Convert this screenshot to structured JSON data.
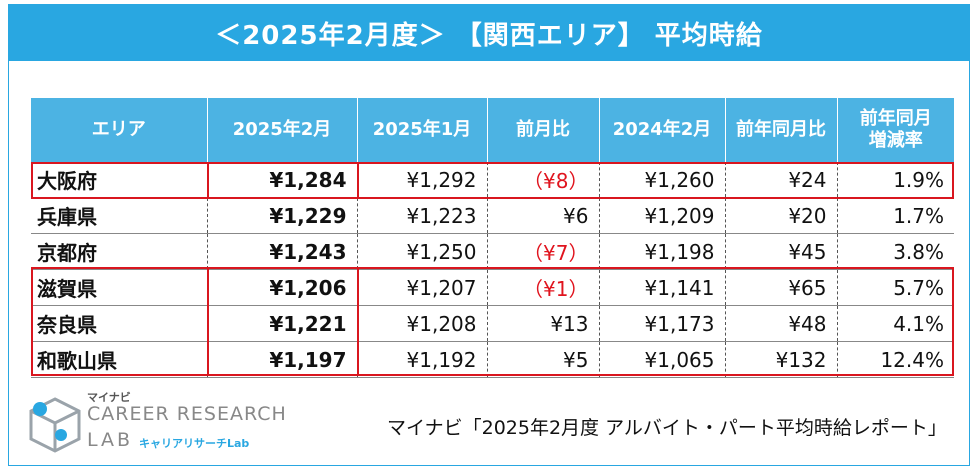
{
  "title": "＜2025年2月度＞ 【関西エリア】 平均時給",
  "table": {
    "headers": [
      "エリア",
      "2025年2月",
      "2025年1月",
      "前月比",
      "2024年2月",
      "前年同月比",
      "前年同月\n増減率"
    ],
    "rows": [
      {
        "area": "大阪府",
        "feb2025": "¥1,284",
        "jan2025": "¥1,292",
        "mom": "（¥8）",
        "mom_negative": true,
        "feb2024": "¥1,260",
        "yoy": "¥24",
        "yoy_rate": "1.9%"
      },
      {
        "area": "兵庫県",
        "feb2025": "¥1,229",
        "jan2025": "¥1,223",
        "mom": "¥6",
        "mom_negative": false,
        "feb2024": "¥1,209",
        "yoy": "¥20",
        "yoy_rate": "1.7%"
      },
      {
        "area": "京都府",
        "feb2025": "¥1,243",
        "jan2025": "¥1,250",
        "mom": "（¥7）",
        "mom_negative": true,
        "feb2024": "¥1,198",
        "yoy": "¥45",
        "yoy_rate": "3.8%"
      },
      {
        "area": "滋賀県",
        "feb2025": "¥1,206",
        "jan2025": "¥1,207",
        "mom": "（¥1）",
        "mom_negative": true,
        "feb2024": "¥1,141",
        "yoy": "¥65",
        "yoy_rate": "5.7%"
      },
      {
        "area": "奈良県",
        "feb2025": "¥1,221",
        "jan2025": "¥1,208",
        "mom": "¥13",
        "mom_negative": false,
        "feb2024": "¥1,173",
        "yoy": "¥48",
        "yoy_rate": "4.1%"
      },
      {
        "area": "和歌山県",
        "feb2025": "¥1,197",
        "jan2025": "¥1,192",
        "mom": "¥5",
        "mom_negative": false,
        "feb2024": "¥1,065",
        "yoy": "¥132",
        "yoy_rate": "12.4%"
      }
    ]
  },
  "logo": {
    "small": "マイナビ",
    "main": "CAREER RESEARCH",
    "lab": "LAB",
    "kana": "キャリアリサーチLab"
  },
  "source": "マイナビ「2025年2月度 アルバイト・パート平均時給レポート」",
  "colors": {
    "accent": "#29a7e1",
    "header_bg": "#4cb3e3",
    "negative": "#e0141e",
    "highlight_border": "#d9161f"
  }
}
